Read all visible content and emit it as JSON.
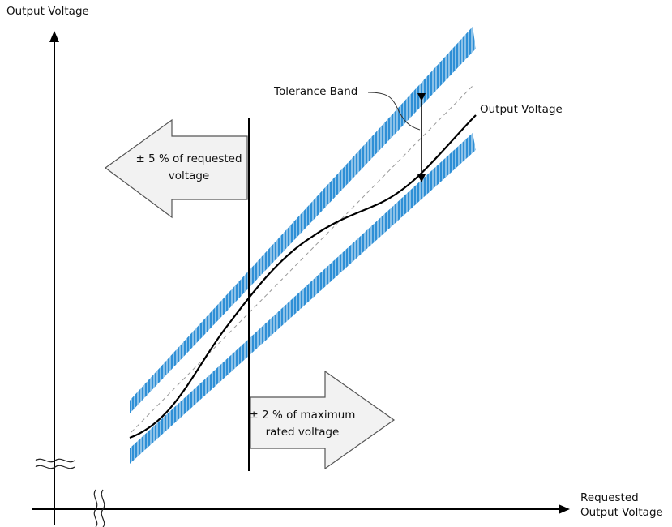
{
  "y_axis_label": "Output Voltage",
  "x_axis_label": [
    "Requested",
    "Output Voltage"
  ],
  "tolerance_band_label": "Tolerance Band",
  "output_curve_label": "Output Voltage",
  "left_arrow_text": [
    "± 5 % of requested",
    "voltage"
  ],
  "right_arrow_text": [
    "± 2 % of maximum",
    "rated voltage"
  ],
  "colors": {
    "band": "#2e8fd6",
    "band_hatch": "#ffffff",
    "arrow_fill": "#f2f2f2",
    "arrow_stroke": "#555555",
    "line": "#000000",
    "dashed": "#999999"
  }
}
